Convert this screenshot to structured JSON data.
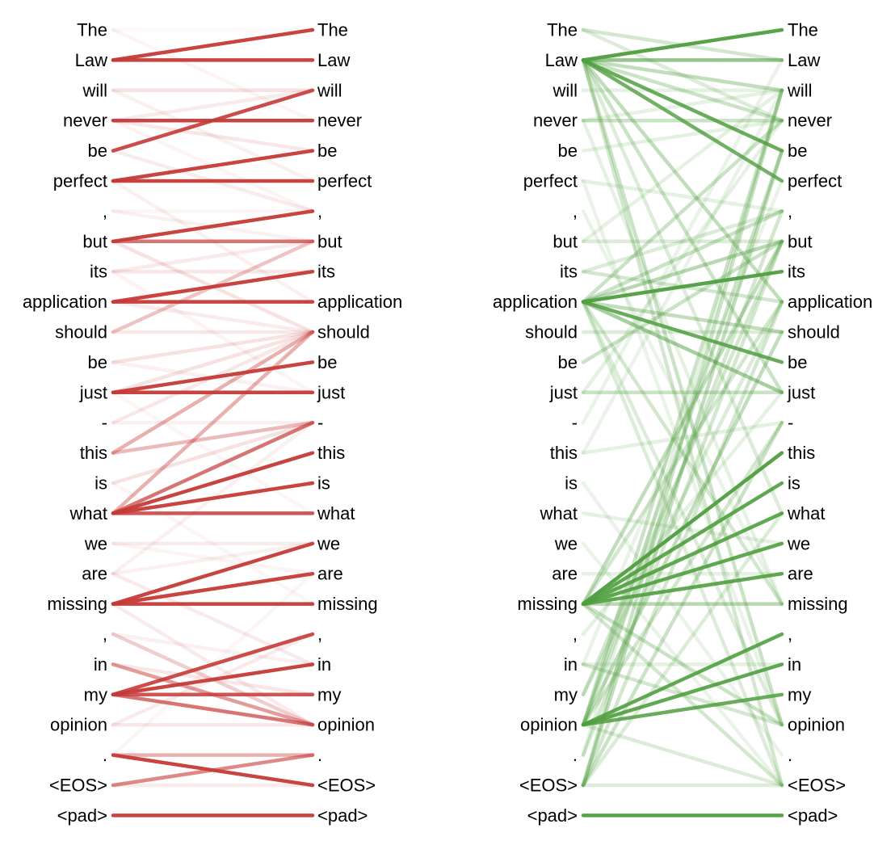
{
  "tokens": [
    "The",
    "Law",
    "will",
    "never",
    "be",
    "perfect",
    ",",
    "but",
    "its",
    "application",
    "should",
    "be",
    "just",
    "-",
    "this",
    "is",
    "what",
    "we",
    "are",
    "missing",
    ",",
    "in",
    "my",
    "opinion",
    ".",
    "<EOS>",
    "<pad>"
  ],
  "colors": {
    "left_panel": "#c53a37",
    "right_panel": "#4f9e3f",
    "text": "#000000"
  },
  "panels": [
    {
      "id": "left",
      "color_key": "left_panel",
      "edges": [
        [
          0,
          0,
          0.04
        ],
        [
          0,
          3,
          0.06
        ],
        [
          1,
          0,
          0.95
        ],
        [
          1,
          1,
          0.95
        ],
        [
          2,
          2,
          0.15
        ],
        [
          2,
          5,
          0.08
        ],
        [
          3,
          2,
          0.1
        ],
        [
          3,
          3,
          0.95
        ],
        [
          3,
          4,
          0.12
        ],
        [
          4,
          2,
          0.9
        ],
        [
          4,
          6,
          0.1
        ],
        [
          5,
          4,
          0.95
        ],
        [
          5,
          5,
          0.95
        ],
        [
          5,
          9,
          0.08
        ],
        [
          6,
          7,
          0.08
        ],
        [
          6,
          6,
          0.05
        ],
        [
          7,
          6,
          0.95
        ],
        [
          7,
          7,
          0.7
        ],
        [
          7,
          10,
          0.15
        ],
        [
          8,
          8,
          0.12
        ],
        [
          8,
          7,
          0.1
        ],
        [
          9,
          8,
          0.95
        ],
        [
          9,
          9,
          0.95
        ],
        [
          9,
          10,
          0.1
        ],
        [
          10,
          7,
          0.3
        ],
        [
          10,
          10,
          0.12
        ],
        [
          11,
          10,
          0.15
        ],
        [
          11,
          12,
          0.08
        ],
        [
          12,
          11,
          0.95
        ],
        [
          12,
          12,
          0.95
        ],
        [
          12,
          10,
          0.15
        ],
        [
          13,
          13,
          0.08
        ],
        [
          13,
          10,
          0.12
        ],
        [
          14,
          10,
          0.4
        ],
        [
          14,
          13,
          0.35
        ],
        [
          15,
          13,
          0.15
        ],
        [
          16,
          10,
          0.4
        ],
        [
          16,
          13,
          0.7
        ],
        [
          16,
          14,
          0.95
        ],
        [
          16,
          15,
          0.95
        ],
        [
          16,
          16,
          0.85
        ],
        [
          17,
          17,
          0.1
        ],
        [
          17,
          18,
          0.06
        ],
        [
          18,
          17,
          0.08
        ],
        [
          18,
          21,
          0.1
        ],
        [
          18,
          13,
          0.08
        ],
        [
          19,
          17,
          0.95
        ],
        [
          19,
          18,
          0.95
        ],
        [
          19,
          19,
          0.95
        ],
        [
          19,
          23,
          0.1
        ],
        [
          20,
          23,
          0.25
        ],
        [
          20,
          21,
          0.08
        ],
        [
          21,
          23,
          0.5
        ],
        [
          21,
          22,
          0.12
        ],
        [
          22,
          20,
          0.9
        ],
        [
          22,
          21,
          0.95
        ],
        [
          22,
          22,
          0.85
        ],
        [
          22,
          23,
          0.7
        ],
        [
          23,
          23,
          0.12
        ],
        [
          23,
          20,
          0.1
        ],
        [
          24,
          25,
          0.95
        ],
        [
          24,
          24,
          0.4
        ],
        [
          25,
          24,
          0.6
        ],
        [
          25,
          25,
          0.1
        ],
        [
          26,
          26,
          0.95
        ],
        [
          3,
          6,
          0.06
        ],
        [
          8,
          12,
          0.06
        ],
        [
          12,
          16,
          0.05
        ],
        [
          15,
          19,
          0.05
        ],
        [
          24,
          18,
          0.05
        ]
      ]
    },
    {
      "id": "right",
      "color_key": "right_panel",
      "edges": [
        [
          1,
          0,
          0.95
        ],
        [
          1,
          1,
          0.6
        ],
        [
          1,
          2,
          0.35
        ],
        [
          1,
          3,
          0.3
        ],
        [
          1,
          4,
          0.85
        ],
        [
          1,
          5,
          0.8
        ],
        [
          1,
          9,
          0.35
        ],
        [
          1,
          12,
          0.3
        ],
        [
          1,
          16,
          0.2
        ],
        [
          1,
          23,
          0.3
        ],
        [
          1,
          25,
          0.25
        ],
        [
          0,
          1,
          0.25
        ],
        [
          0,
          3,
          0.2
        ],
        [
          2,
          2,
          0.15
        ],
        [
          3,
          3,
          0.3
        ],
        [
          3,
          2,
          0.15
        ],
        [
          4,
          3,
          0.15
        ],
        [
          5,
          6,
          0.15
        ],
        [
          7,
          7,
          0.2
        ],
        [
          7,
          2,
          0.15
        ],
        [
          8,
          6,
          0.2
        ],
        [
          8,
          9,
          0.25
        ],
        [
          9,
          8,
          0.95
        ],
        [
          9,
          12,
          0.5
        ],
        [
          9,
          11,
          0.85
        ],
        [
          9,
          7,
          0.4
        ],
        [
          9,
          6,
          0.3
        ],
        [
          9,
          10,
          0.35
        ],
        [
          9,
          3,
          0.3
        ],
        [
          9,
          19,
          0.25
        ],
        [
          9,
          23,
          0.2
        ],
        [
          9,
          25,
          0.2
        ],
        [
          10,
          10,
          0.2
        ],
        [
          11,
          7,
          0.3
        ],
        [
          12,
          12,
          0.3
        ],
        [
          14,
          13,
          0.15
        ],
        [
          16,
          17,
          0.15
        ],
        [
          18,
          18,
          0.15
        ],
        [
          19,
          14,
          0.95
        ],
        [
          19,
          15,
          0.9
        ],
        [
          19,
          16,
          0.9
        ],
        [
          19,
          17,
          0.9
        ],
        [
          19,
          18,
          0.9
        ],
        [
          19,
          19,
          0.4
        ],
        [
          19,
          7,
          0.35
        ],
        [
          19,
          9,
          0.25
        ],
        [
          19,
          23,
          0.3
        ],
        [
          19,
          25,
          0.25
        ],
        [
          20,
          12,
          0.15
        ],
        [
          21,
          21,
          0.15
        ],
        [
          21,
          23,
          0.25
        ],
        [
          22,
          7,
          0.25
        ],
        [
          22,
          9,
          0.2
        ],
        [
          23,
          20,
          0.9
        ],
        [
          23,
          21,
          0.9
        ],
        [
          23,
          22,
          0.85
        ],
        [
          23,
          10,
          0.35
        ],
        [
          23,
          2,
          0.3
        ],
        [
          23,
          4,
          0.3
        ],
        [
          23,
          6,
          0.25
        ],
        [
          23,
          13,
          0.25
        ],
        [
          23,
          25,
          0.2
        ],
        [
          24,
          7,
          0.25
        ],
        [
          24,
          2,
          0.15
        ],
        [
          25,
          4,
          0.35
        ],
        [
          25,
          2,
          0.3
        ],
        [
          25,
          9,
          0.25
        ],
        [
          25,
          13,
          0.3
        ],
        [
          25,
          16,
          0.2
        ],
        [
          25,
          25,
          0.2
        ],
        [
          26,
          26,
          0.95
        ],
        [
          12,
          3,
          0.15
        ],
        [
          3,
          19,
          0.15
        ],
        [
          5,
          23,
          0.12
        ],
        [
          17,
          25,
          0.12
        ],
        [
          13,
          1,
          0.12
        ],
        [
          15,
          24,
          0.12
        ],
        [
          6,
          19,
          0.12
        ],
        [
          21,
          5,
          0.12
        ],
        [
          14,
          2,
          0.12
        ]
      ]
    }
  ]
}
